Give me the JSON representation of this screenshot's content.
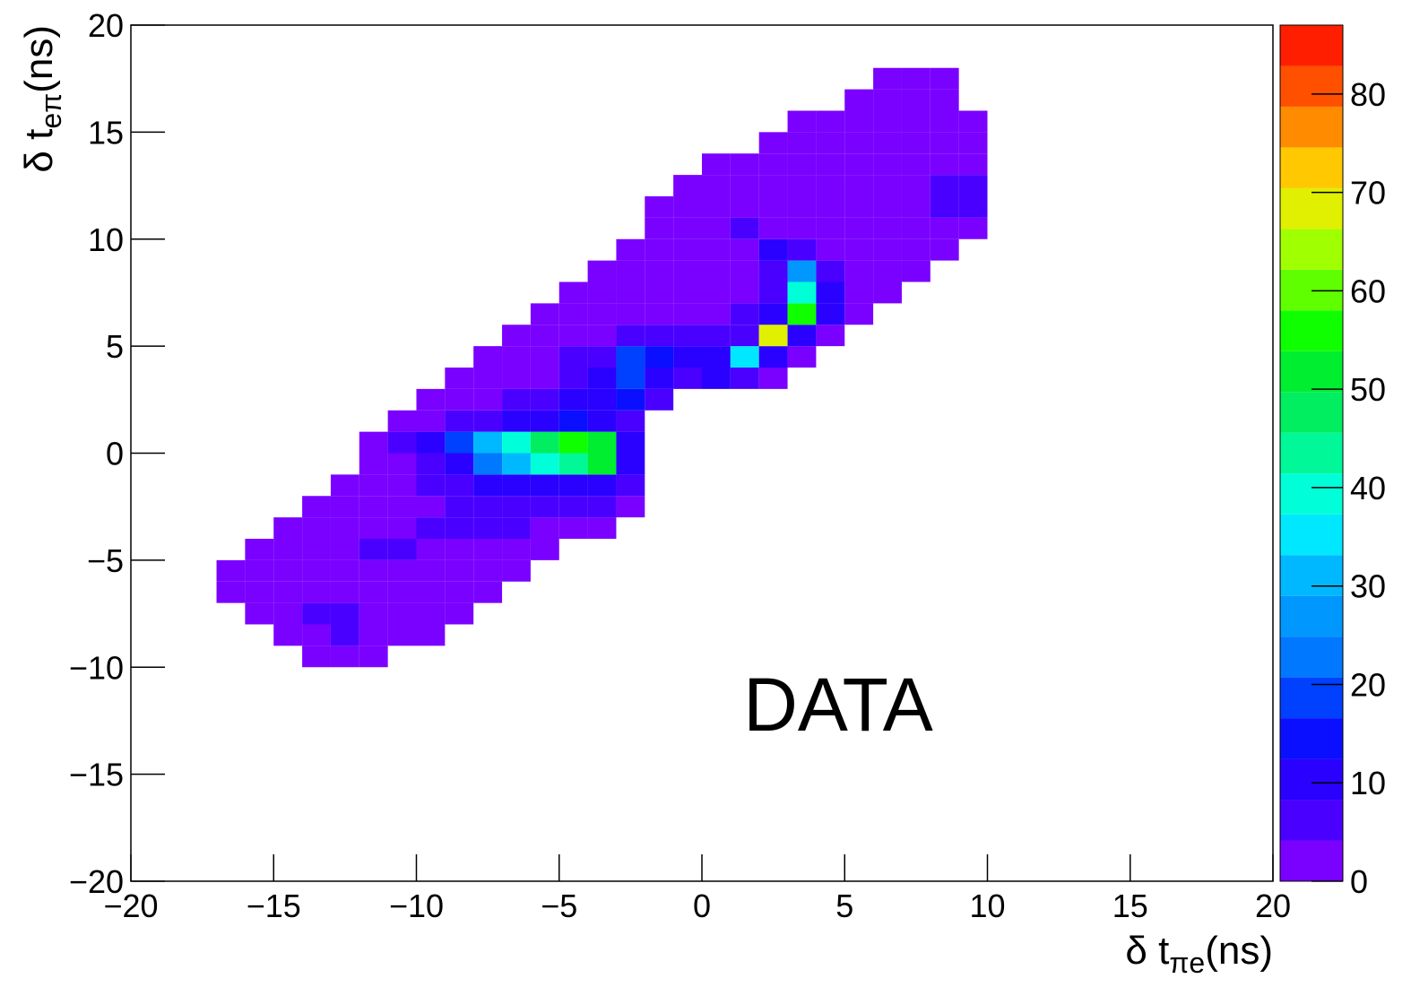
{
  "chart_data": {
    "type": "heatmap",
    "xlabel": {
      "text": "δ t",
      "subscript": "πe",
      "suffix": "(ns)"
    },
    "ylabel": {
      "text": "δ t",
      "subscript": "eπ",
      "suffix": "(ns)"
    },
    "annotation": "DATA",
    "xlim": [
      -20,
      20
    ],
    "ylim": [
      -20,
      20
    ],
    "bin_width": 1,
    "xticks": [
      {
        "value": -20,
        "label": "−20"
      },
      {
        "value": -15,
        "label": "−15"
      },
      {
        "value": -10,
        "label": "−10"
      },
      {
        "value": -5,
        "label": "−5"
      },
      0,
      5,
      10,
      15,
      20
    ],
    "yticks": [
      {
        "value": -20,
        "label": "−20"
      },
      {
        "value": -15,
        "label": "−15"
      },
      {
        "value": -10,
        "label": "−10"
      },
      {
        "value": -5,
        "label": "−5"
      },
      0,
      5,
      10,
      15,
      20
    ],
    "zlim": [
      0,
      87
    ],
    "zticks": [
      0,
      10,
      20,
      30,
      40,
      50,
      60,
      70,
      80
    ],
    "palette": [
      "#7a00ff",
      "#4a00ff",
      "#2a00ff",
      "#0a10ff",
      "#0040ff",
      "#0078ff",
      "#0098ff",
      "#00b8ff",
      "#00e8ff",
      "#00ffd8",
      "#00f898",
      "#00ee60",
      "#00ee30",
      "#10ff00",
      "#60ff00",
      "#a0ff00",
      "#e0f000",
      "#ffc800",
      "#ff8c00",
      "#ff5000",
      "#ff1e00"
    ],
    "rows": [
      {
        "y": -10,
        "x0": -14,
        "values": [
          3,
          3,
          3
        ]
      },
      {
        "y": -9,
        "x0": -15,
        "values": [
          2,
          4,
          5,
          4,
          3,
          2
        ]
      },
      {
        "y": -8,
        "x0": -16,
        "values": [
          1,
          3,
          5,
          5,
          4,
          3,
          2,
          1
        ]
      },
      {
        "y": -7,
        "x0": -17,
        "values": [
          1,
          1,
          3,
          4,
          4,
          4,
          3,
          2,
          1,
          1
        ]
      },
      {
        "y": -6,
        "x0": -17,
        "values": [
          1,
          1,
          2,
          3,
          4,
          4,
          4,
          3,
          2,
          1,
          1
        ]
      },
      {
        "y": -5,
        "x0": -16,
        "values": [
          1,
          2,
          3,
          4,
          5,
          5,
          4,
          3,
          2,
          1,
          1
        ]
      },
      {
        "y": -4,
        "x0": -15,
        "values": [
          1,
          1,
          2,
          3,
          4,
          5,
          6,
          6,
          5,
          4,
          3,
          2
        ]
      },
      {
        "y": -3,
        "x0": -14,
        "values": [
          1,
          1,
          2,
          3,
          4,
          6,
          7,
          8,
          8,
          7,
          5,
          3
        ]
      },
      {
        "y": -2,
        "x0": -13,
        "values": [
          1,
          2,
          3,
          5,
          7,
          9,
          10,
          11,
          11,
          10,
          6
        ]
      },
      {
        "y": -1,
        "x0": -12,
        "values": [
          1,
          3,
          6,
          12,
          22,
          30,
          38,
          45,
          50,
          12
        ]
      },
      {
        "y": 0,
        "x0": -12,
        "values": [
          2,
          5,
          10,
          20,
          32,
          40,
          48,
          55,
          52,
          10
        ]
      },
      {
        "y": 1,
        "x0": -11,
        "values": [
          1,
          3,
          5,
          8,
          10,
          12,
          14,
          12,
          8
        ]
      },
      {
        "y": 2,
        "x0": -10,
        "values": [
          1,
          2,
          3,
          5,
          7,
          9,
          12,
          14,
          6
        ]
      },
      {
        "y": 3,
        "x0": -9,
        "values": [
          1,
          2,
          3,
          4,
          6,
          10,
          18,
          12,
          5,
          10,
          8,
          4
        ]
      },
      {
        "y": 4,
        "x0": -8,
        "values": [
          1,
          2,
          3,
          5,
          8,
          18,
          15,
          12,
          10,
          35,
          10,
          4
        ]
      },
      {
        "y": 5,
        "x0": -7,
        "values": [
          1,
          2,
          3,
          4,
          6,
          8,
          6,
          5,
          8,
          70,
          12,
          4
        ]
      },
      {
        "y": 6,
        "x0": -6,
        "values": [
          1,
          2,
          2,
          3,
          3,
          3,
          4,
          5,
          10,
          55,
          12,
          4
        ]
      },
      {
        "y": 7,
        "x0": -5,
        "values": [
          1,
          1,
          2,
          2,
          3,
          3,
          4,
          8,
          40,
          10,
          4,
          3
        ]
      },
      {
        "y": 8,
        "x0": -4,
        "values": [
          1,
          1,
          1,
          2,
          2,
          3,
          8,
          25,
          8,
          4,
          3,
          2
        ]
      },
      {
        "y": 9,
        "x0": -3,
        "values": [
          1,
          1,
          1,
          2,
          4,
          12,
          6,
          3,
          3,
          3,
          2,
          2
        ]
      },
      {
        "y": 10,
        "x0": -2,
        "values": [
          1,
          1,
          2,
          5,
          4,
          2,
          2,
          2,
          3,
          3,
          3,
          2
        ]
      },
      {
        "y": 11,
        "x0": -2,
        "values": [
          1,
          1,
          2,
          2,
          2,
          2,
          2,
          2,
          3,
          4,
          5,
          6
        ]
      },
      {
        "y": 12,
        "x0": -1,
        "values": [
          1,
          1,
          1,
          1,
          1,
          1,
          2,
          2,
          3,
          5,
          6
        ]
      },
      {
        "y": 13,
        "x0": 0,
        "values": [
          1,
          1,
          1,
          1,
          1,
          2,
          2,
          3,
          4,
          3
        ]
      },
      {
        "y": 14,
        "x0": 2,
        "values": [
          1,
          1,
          1,
          1,
          1,
          2,
          2,
          1
        ]
      },
      {
        "y": 15,
        "x0": 3,
        "values": [
          1,
          1,
          1,
          1,
          2,
          1,
          1
        ]
      },
      {
        "y": 16,
        "x0": 5,
        "values": [
          1,
          1,
          1,
          1
        ]
      },
      {
        "y": 17,
        "x0": 6,
        "values": [
          1,
          1,
          1
        ]
      }
    ]
  }
}
